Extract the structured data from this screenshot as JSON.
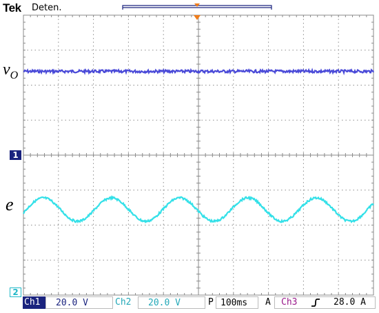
{
  "header": {
    "brand": "Tek",
    "acquisition_state": "Deten."
  },
  "channels": {
    "ch1": {
      "trace_label_main": "v",
      "trace_label_sub": "O",
      "marker": "1",
      "color": "#4a4ad8",
      "marker_bg": "#1a237e"
    },
    "ch2": {
      "trace_label": "e",
      "marker": "2",
      "color": "#33e0e8"
    }
  },
  "status_bar": {
    "ch1_name": "Ch1",
    "ch1_scale": "20.0 V",
    "ch2_name": "Ch2",
    "ch2_scale": "20.0 V",
    "timebase_prefix": "P",
    "timebase": "100ms",
    "trigger_mode": "A",
    "trigger_source": "Ch3",
    "trigger_slope_icon": "rising-edge-icon",
    "trigger_level": "28.0 A"
  },
  "colors": {
    "grid": "#8a8a8a",
    "trigger_marker": "#f07d1a",
    "ch3": "#9a1a8c"
  }
}
